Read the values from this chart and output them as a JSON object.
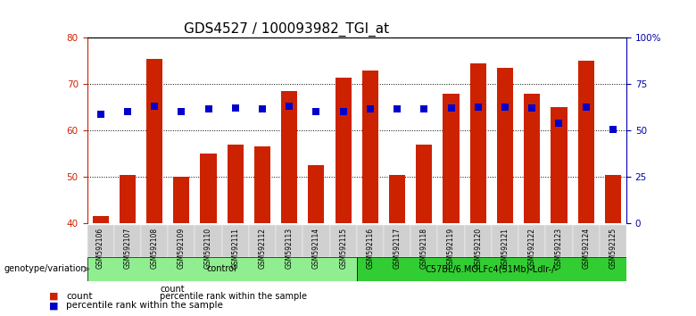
{
  "title": "GDS4527 / 100093982_TGI_at",
  "samples": [
    "GSM592106",
    "GSM592107",
    "GSM592108",
    "GSM592109",
    "GSM592110",
    "GSM592111",
    "GSM592112",
    "GSM592113",
    "GSM592114",
    "GSM592115",
    "GSM592116",
    "GSM592117",
    "GSM592118",
    "GSM592119",
    "GSM592120",
    "GSM592121",
    "GSM592122",
    "GSM592123",
    "GSM592124",
    "GSM592125"
  ],
  "counts": [
    41.5,
    50.5,
    75.5,
    50.0,
    55.0,
    57.0,
    56.5,
    68.5,
    52.5,
    71.5,
    73.0,
    50.5,
    57.0,
    68.0,
    74.5,
    73.5,
    68.0,
    65.0,
    75.0,
    50.5
  ],
  "percentile_ranks": [
    59.0,
    60.5,
    63.0,
    60.5,
    61.5,
    62.0,
    61.5,
    63.0,
    60.5,
    60.5,
    61.5,
    61.5,
    61.5,
    62.0,
    62.5,
    62.5,
    62.0,
    54.0,
    62.5,
    50.5
  ],
  "groups": [
    {
      "label": "control",
      "start": 0,
      "end": 10,
      "color": "#90EE90"
    },
    {
      "label": "C57BL/6.MOLFc4(51Mb)-Ldlr-/-",
      "start": 10,
      "end": 20,
      "color": "#32CD32"
    }
  ],
  "bar_color": "#CC2200",
  "dot_color": "#0000CC",
  "ymin": 40,
  "ymax": 80,
  "yticks": [
    40,
    50,
    60,
    70,
    80
  ],
  "y2ticks": [
    0,
    25,
    50,
    75,
    100
  ],
  "y2labels": [
    "0",
    "25",
    "50",
    "75",
    "100%"
  ],
  "ylabel_left_color": "#CC2200",
  "ylabel_right_color": "#0000AA",
  "grid_color": "#000000",
  "bg_color": "#ffffff",
  "xlabel_area_color": "#C0C0C0",
  "legend_count_color": "#CC2200",
  "legend_dot_color": "#0000CC",
  "genotype_label": "genotype/variation",
  "arrow_color": "#555555",
  "title_fontsize": 11,
  "tick_fontsize": 7.5,
  "bar_width": 0.6
}
